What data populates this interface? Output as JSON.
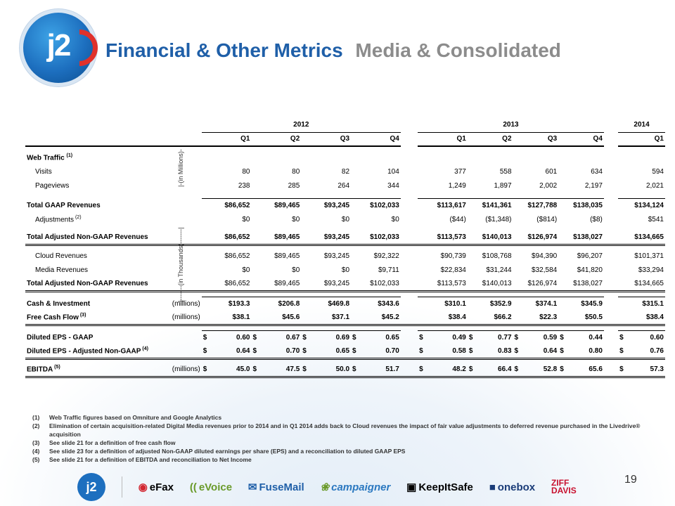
{
  "header": {
    "logo_text": "j2",
    "title_main": "Financial & Other Metrics",
    "title_sub": "Media & Consolidated"
  },
  "table": {
    "years": [
      "2012",
      "2013",
      "2014"
    ],
    "quarters_2012": [
      "Q1",
      "Q2",
      "Q3",
      "Q4"
    ],
    "quarters_2013": [
      "Q1",
      "Q2",
      "Q3",
      "Q4"
    ],
    "quarters_2014": [
      "Q1"
    ],
    "vlabel_millions": "|-(in Millions)-",
    "vlabel_thousands": "|-------(in Thousands)-------|",
    "web_traffic": {
      "label": "Web Traffic",
      "sup": "(1)"
    },
    "visits": {
      "label": "Visits",
      "v": [
        "80",
        "80",
        "82",
        "104",
        "377",
        "558",
        "601",
        "634",
        "594"
      ]
    },
    "pageviews": {
      "label": "Pageviews",
      "v": [
        "238",
        "285",
        "264",
        "344",
        "1,249",
        "1,897",
        "2,002",
        "2,197",
        "2,021"
      ]
    },
    "gaap_rev": {
      "label": "Total GAAP Revenues",
      "v": [
        "$86,652",
        "$89,465",
        "$93,245",
        "$102,033",
        "$113,617",
        "$141,361",
        "$127,788",
        "$138,035",
        "$134,124"
      ]
    },
    "adjustments": {
      "label": "Adjustments",
      "sup": "(2)",
      "v": [
        "$0",
        "$0",
        "$0",
        "$0",
        "($44)",
        "($1,348)",
        "($814)",
        "($8)",
        "$541"
      ]
    },
    "adj_rev": {
      "label": "Total Adjusted Non-GAAP Revenues",
      "v": [
        "$86,652",
        "$89,465",
        "$93,245",
        "$102,033",
        "$113,573",
        "$140,013",
        "$126,974",
        "$138,027",
        "$134,665"
      ]
    },
    "cloud_rev": {
      "label": "Cloud Revenues",
      "v": [
        "$86,652",
        "$89,465",
        "$93,245",
        "$92,322",
        "$90,739",
        "$108,768",
        "$94,390",
        "$96,207",
        "$101,371"
      ]
    },
    "media_rev": {
      "label": "Media Revenues",
      "v": [
        "$0",
        "$0",
        "$0",
        "$9,711",
        "$22,834",
        "$31,244",
        "$32,584",
        "$41,820",
        "$33,294"
      ]
    },
    "adj_rev2": {
      "label": "Total Adjusted Non-GAAP Revenues",
      "v": [
        "$86,652",
        "$89,465",
        "$93,245",
        "$102,033",
        "$113,573",
        "$140,013",
        "$126,974",
        "$138,027",
        "$134,665"
      ]
    },
    "cash": {
      "label": "Cash & Investment",
      "unit": "(millions)",
      "v": [
        "$193.3",
        "$206.8",
        "$469.8",
        "$343.6",
        "$310.1",
        "$352.9",
        "$374.1",
        "$345.9",
        "$315.1"
      ]
    },
    "fcf": {
      "label": "Free Cash Flow",
      "sup": "(3)",
      "unit": "(millions)",
      "v": [
        "$38.1",
        "$45.6",
        "$37.1",
        "$45.2",
        "$38.4",
        "$66.2",
        "$22.3",
        "$50.5",
        "$38.4"
      ]
    },
    "eps_gaap": {
      "label": "Diluted EPS - GAAP",
      "v": [
        "0.60",
        "0.67",
        "0.69",
        "0.65",
        "0.49",
        "0.77",
        "0.59",
        "0.44",
        "0.60"
      ]
    },
    "eps_adj": {
      "label": "Diluted EPS - Adjusted Non-GAAP",
      "sup": "(4)",
      "v": [
        "0.64",
        "0.70",
        "0.65",
        "0.70",
        "0.58",
        "0.83",
        "0.64",
        "0.80",
        "0.76"
      ]
    },
    "ebitda": {
      "label": "EBITDA",
      "sup": "(5)",
      "unit": "(millions)",
      "v": [
        "45.0",
        "47.5",
        "50.0",
        "51.7",
        "48.2",
        "66.4",
        "52.8",
        "65.6",
        "57.3"
      ]
    },
    "dollar_sign": "$"
  },
  "footnotes": [
    {
      "num": "(1)",
      "text": "Web Traffic figures based on Omniture and Google Analytics"
    },
    {
      "num": "(2)",
      "text": "Elimination of certain acquisition-related Digital Media revenues prior to 2014 and in Q1 2014 adds back to Cloud revenues the impact of fair value adjustments to deferred revenue purchased in the Livedrive® acquisition"
    },
    {
      "num": "(3)",
      "text": "See slide 21 for a definition of free cash flow"
    },
    {
      "num": "(4)",
      "text": "See slide 23 for a definition of adjusted Non-GAAP diluted earnings per share (EPS) and a reconciliation to diluted GAAP EPS"
    },
    {
      "num": "(5)",
      "text": "See slide 21 for a definition of EBITDA and reconciliation to Net Income"
    }
  ],
  "brands": [
    "j2",
    "eFax",
    "eVoice",
    "FuseMail",
    "campaigner",
    "KeepItSafe",
    "onebox",
    "ZIFF DAVIS"
  ],
  "page_number": "19",
  "colors": {
    "title_blue": "#1f5fa8",
    "title_gray": "#8c8c8c",
    "efax_red": "#d22630",
    "evoice_green": "#6a9a2a",
    "fusemail_blue": "#1f5fa8",
    "campaigner_blue": "#2a78c0",
    "onebox_navy": "#1a3c78",
    "ziff_red": "#c8102e"
  }
}
